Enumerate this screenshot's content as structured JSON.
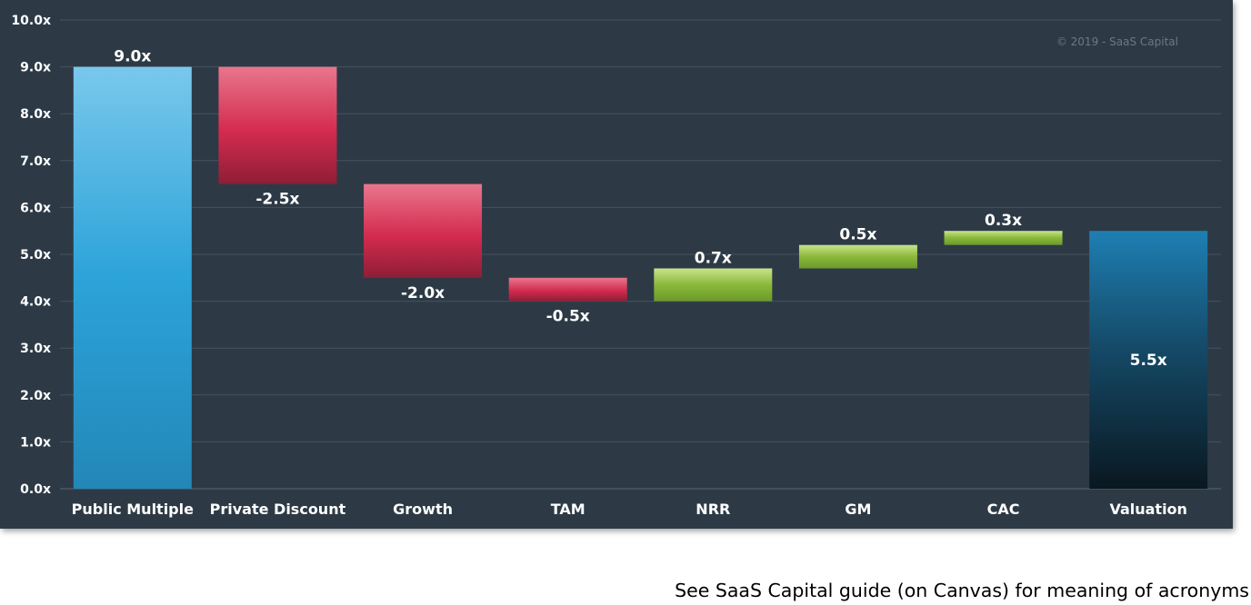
{
  "chart_data": {
    "type": "bar",
    "subtype": "waterfall",
    "categories": [
      "Public Multiple",
      "Private Discount",
      "Growth",
      "TAM",
      "NRR",
      "GM",
      "CAC",
      "Valuation"
    ],
    "values": [
      9.0,
      -2.5,
      -2.0,
      -0.5,
      0.7,
      0.5,
      0.3,
      5.5
    ],
    "value_labels": [
      "9.0x",
      "-2.5x",
      "-2.0x",
      "-0.5x",
      "0.7x",
      "0.5x",
      "0.3x",
      "5.5x"
    ],
    "bar_kind": [
      "total",
      "decrease",
      "decrease",
      "decrease",
      "increase",
      "increase",
      "increase",
      "total"
    ],
    "ylim": [
      0,
      10
    ],
    "yticks": [
      0,
      1,
      2,
      3,
      4,
      5,
      6,
      7,
      8,
      9,
      10
    ],
    "ytick_labels": [
      "0.0x",
      "1.0x",
      "2.0x",
      "3.0x",
      "4.0x",
      "5.0x",
      "6.0x",
      "7.0x",
      "8.0x",
      "9.0x",
      "10.0x"
    ],
    "grid": true,
    "credit": "© 2019 - SaaS Capital",
    "colors": {
      "background": "#2d3a46",
      "gridline": "#46525e",
      "public_multiple": "#2ca3d9",
      "decrease": "#d42b4f",
      "increase": "#8bb83a",
      "valuation_top": "#1e7fb3",
      "valuation_bottom": "#0a1820"
    }
  },
  "footnote": "See SaaS Capital guide (on Canvas) for meaning of acronyms"
}
